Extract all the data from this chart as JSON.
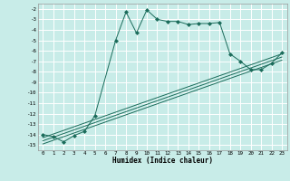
{
  "xlabel": "Humidex (Indice chaleur)",
  "bg_color": "#c8ece8",
  "grid_color": "#ffffff",
  "line_color": "#1a6b5a",
  "xlim": [
    -0.5,
    23.5
  ],
  "ylim": [
    -15.5,
    -1.5
  ],
  "xtick_labels": [
    "0",
    "1",
    "2",
    "3",
    "4",
    "5",
    "6",
    "7",
    "8",
    "9",
    "10",
    "11",
    "12",
    "13",
    "14",
    "15",
    "16",
    "17",
    "18",
    "19",
    "20",
    "21",
    "22",
    "23"
  ],
  "xtick_vals": [
    0,
    1,
    2,
    3,
    4,
    5,
    6,
    7,
    8,
    9,
    10,
    11,
    12,
    13,
    14,
    15,
    16,
    17,
    18,
    19,
    20,
    21,
    22,
    23
  ],
  "ytick_vals": [
    -2,
    -3,
    -4,
    -5,
    -6,
    -7,
    -8,
    -9,
    -10,
    -11,
    -12,
    -13,
    -14,
    -15
  ],
  "ytick_labels": [
    "-2",
    "-3",
    "-4",
    "-5",
    "-6",
    "-7",
    "-8",
    "-9",
    "-10",
    "-11",
    "-12",
    "-13",
    "-14",
    "-15"
  ],
  "series": [
    [
      0,
      -14.0
    ],
    [
      1,
      -14.2
    ],
    [
      2,
      -14.7
    ],
    [
      3,
      -14.1
    ],
    [
      4,
      -13.7
    ],
    [
      5,
      -12.2
    ],
    [
      7,
      -5.0
    ],
    [
      8,
      -2.3
    ],
    [
      9,
      -4.3
    ],
    [
      10,
      -2.1
    ],
    [
      11,
      -3.0
    ],
    [
      12,
      -3.2
    ],
    [
      13,
      -3.2
    ],
    [
      14,
      -3.5
    ],
    [
      15,
      -3.4
    ],
    [
      16,
      -3.4
    ],
    [
      17,
      -3.3
    ],
    [
      18,
      -6.3
    ],
    [
      19,
      -7.0
    ],
    [
      20,
      -7.8
    ],
    [
      21,
      -7.8
    ],
    [
      22,
      -7.2
    ],
    [
      23,
      -6.2
    ]
  ],
  "linear_series": [
    [
      [
        0,
        -14.9
      ],
      [
        23,
        -6.9
      ]
    ],
    [
      [
        0,
        -14.6
      ],
      [
        23,
        -6.6
      ]
    ],
    [
      [
        0,
        -14.3
      ],
      [
        23,
        -6.3
      ]
    ]
  ]
}
